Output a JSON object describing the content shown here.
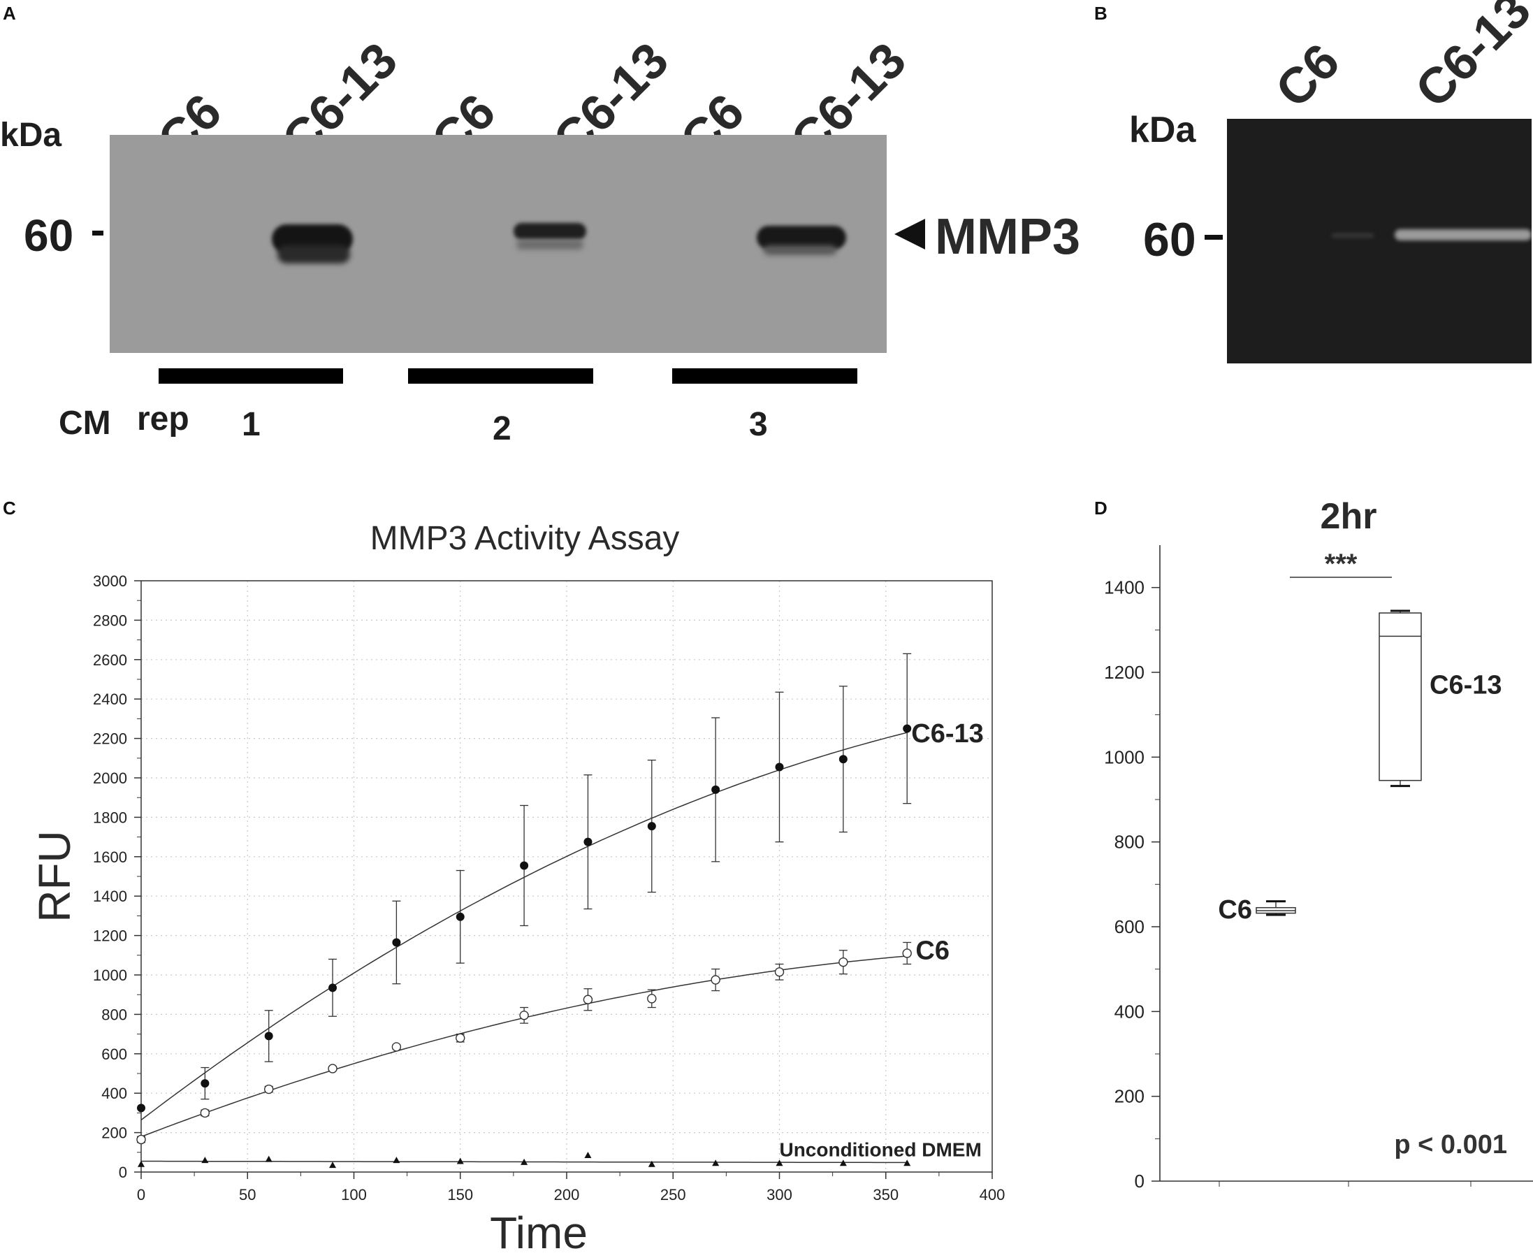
{
  "panels": {
    "A": {
      "letter": "A",
      "kda_label": "kDa",
      "marker_label": "60",
      "band_label": "MMP3",
      "lanes": [
        "C6",
        "C6-13",
        "C6",
        "C6-13",
        "C6",
        "C6-13"
      ],
      "cm_label": "CM",
      "rep_label": "rep",
      "rep_numbers": [
        "1",
        "2",
        "3"
      ],
      "colors": {
        "membrane": "#9b9b9b",
        "band": "#141414"
      }
    },
    "B": {
      "letter": "B",
      "kda_label": "kDa",
      "marker_label": "60",
      "lanes": [
        "C6",
        "C6-13"
      ],
      "colors": {
        "gel": "#1d1d1d",
        "band": "#9a9a9a"
      }
    },
    "C": {
      "letter": "C"
    },
    "D": {
      "letter": "D"
    }
  },
  "chart_data": [
    {
      "panel": "C",
      "type": "scatter",
      "title": "MMP3 Activity Assay",
      "xlabel": "Time",
      "ylabel": "RFU",
      "xlim": [
        0,
        400
      ],
      "ylim": [
        0,
        3000
      ],
      "xticks": [
        0,
        50,
        100,
        150,
        200,
        250,
        300,
        350,
        400
      ],
      "yticks": [
        0,
        200,
        400,
        600,
        800,
        1000,
        1200,
        1400,
        1600,
        1800,
        2000,
        2200,
        2400,
        2600,
        2800,
        3000
      ],
      "grid": true,
      "x": [
        0,
        30,
        60,
        90,
        120,
        150,
        180,
        210,
        240,
        270,
        300,
        330,
        360
      ],
      "series": [
        {
          "name": "C6-13",
          "marker": "filled-circle",
          "values": [
            325,
            450,
            690,
            935,
            1165,
            1295,
            1555,
            1675,
            1755,
            1940,
            2055,
            2095,
            2250
          ],
          "error": [
            0,
            80,
            130,
            145,
            210,
            235,
            305,
            340,
            335,
            365,
            380,
            370,
            380
          ],
          "fit": "quadratic"
        },
        {
          "name": "C6",
          "marker": "open-circle",
          "values": [
            165,
            300,
            420,
            525,
            635,
            680,
            795,
            875,
            880,
            975,
            1015,
            1065,
            1110
          ],
          "error": [
            15,
            15,
            15,
            10,
            10,
            20,
            40,
            55,
            45,
            55,
            40,
            60,
            55
          ],
          "fit": "quadratic"
        },
        {
          "name": "Unconditioned DMEM",
          "marker": "filled-triangle",
          "values": [
            40,
            60,
            65,
            35,
            60,
            55,
            50,
            85,
            40,
            45,
            45,
            45,
            45
          ],
          "fit": "linear"
        }
      ],
      "colors": {
        "line": "#333333",
        "grid": "#c8c8c8"
      }
    },
    {
      "panel": "D",
      "type": "box",
      "title": "2hr",
      "ylim": [
        0,
        1500
      ],
      "yticks": [
        0,
        200,
        400,
        600,
        800,
        1000,
        1200,
        1400
      ],
      "groups": [
        {
          "name": "C6",
          "min": 628,
          "q1": 632,
          "median": 638,
          "q3": 645,
          "max": 660
        },
        {
          "name": "C6-13",
          "min": 932,
          "q1": 945,
          "median": 1285,
          "q3": 1340,
          "max": 1345
        }
      ],
      "significance": "***",
      "p_value": "p < 0.001"
    }
  ]
}
